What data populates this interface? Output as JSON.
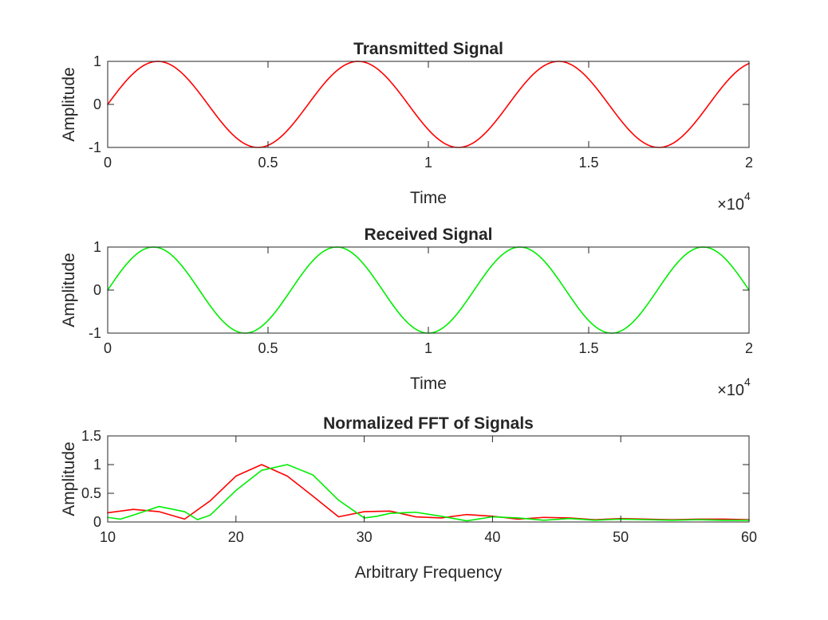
{
  "chart_data": [
    {
      "type": "line",
      "title": "Transmitted Signal",
      "xlabel": "Time",
      "ylabel": "Amplitude",
      "xlim": [
        0,
        20000
      ],
      "ylim": [
        -1,
        1
      ],
      "x_ticks": [
        0,
        5000,
        10000,
        15000,
        20000
      ],
      "x_tick_labels": [
        "0",
        "0.5",
        "1",
        "1.5",
        "2"
      ],
      "y_ticks": [
        -1,
        0,
        1
      ],
      "y_tick_labels": [
        "-1",
        "0",
        "1"
      ],
      "x_exponent_base": "×10",
      "x_exponent_power": "4",
      "grid": false,
      "series": [
        {
          "color": "#ff0000",
          "function": "sine",
          "amplitude": 1,
          "period": 6250,
          "phase": 0
        }
      ]
    },
    {
      "type": "line",
      "title": "Received Signal",
      "xlabel": "Time",
      "ylabel": "Amplitude",
      "xlim": [
        0,
        20000
      ],
      "ylim": [
        -1,
        1
      ],
      "x_ticks": [
        0,
        5000,
        10000,
        15000,
        20000
      ],
      "x_tick_labels": [
        "0",
        "0.5",
        "1",
        "1.5",
        "2"
      ],
      "y_ticks": [
        -1,
        0,
        1
      ],
      "y_tick_labels": [
        "-1",
        "0",
        "1"
      ],
      "x_exponent_base": "×10",
      "x_exponent_power": "4",
      "grid": false,
      "series": [
        {
          "color": "#00ee00",
          "function": "sine",
          "amplitude": 1,
          "period": 5714,
          "phase": 0
        }
      ]
    },
    {
      "type": "line",
      "title": "Normalized FFT of Signals",
      "xlabel": "Arbitrary Frequency",
      "ylabel": "Amplitude",
      "xlim": [
        10,
        60
      ],
      "ylim": [
        0,
        1.5
      ],
      "x_ticks": [
        10,
        20,
        30,
        40,
        50,
        60
      ],
      "x_tick_labels": [
        "10",
        "20",
        "30",
        "40",
        "50",
        "60"
      ],
      "y_ticks": [
        0,
        0.5,
        1,
        1.5
      ],
      "y_tick_labels": [
        "0",
        "0.5",
        "1",
        "1.5"
      ],
      "grid": false,
      "series": [
        {
          "color": "#ff0000",
          "x": [
            10,
            12,
            14,
            16,
            18,
            20,
            22,
            24,
            26,
            28,
            30,
            32,
            34,
            36,
            38,
            40,
            42,
            44,
            46,
            48,
            50,
            52,
            54,
            56,
            58,
            60
          ],
          "y": [
            0.16,
            0.22,
            0.18,
            0.05,
            0.37,
            0.8,
            1.0,
            0.8,
            0.45,
            0.09,
            0.18,
            0.19,
            0.09,
            0.07,
            0.13,
            0.1,
            0.05,
            0.08,
            0.07,
            0.04,
            0.06,
            0.05,
            0.04,
            0.05,
            0.05,
            0.04
          ]
        },
        {
          "color": "#00ee00",
          "x": [
            10,
            11,
            12,
            14,
            16,
            17,
            18,
            20,
            22,
            24,
            26,
            28,
            30,
            31,
            32,
            34,
            36,
            38,
            40,
            42,
            44,
            46,
            48,
            50,
            52,
            54,
            56,
            58,
            60
          ],
          "y": [
            0.08,
            0.05,
            0.12,
            0.27,
            0.18,
            0.04,
            0.12,
            0.55,
            0.9,
            1.0,
            0.82,
            0.38,
            0.07,
            0.1,
            0.15,
            0.17,
            0.1,
            0.02,
            0.09,
            0.07,
            0.03,
            0.06,
            0.03,
            0.05,
            0.04,
            0.03,
            0.04,
            0.03,
            0.03
          ]
        }
      ]
    }
  ]
}
